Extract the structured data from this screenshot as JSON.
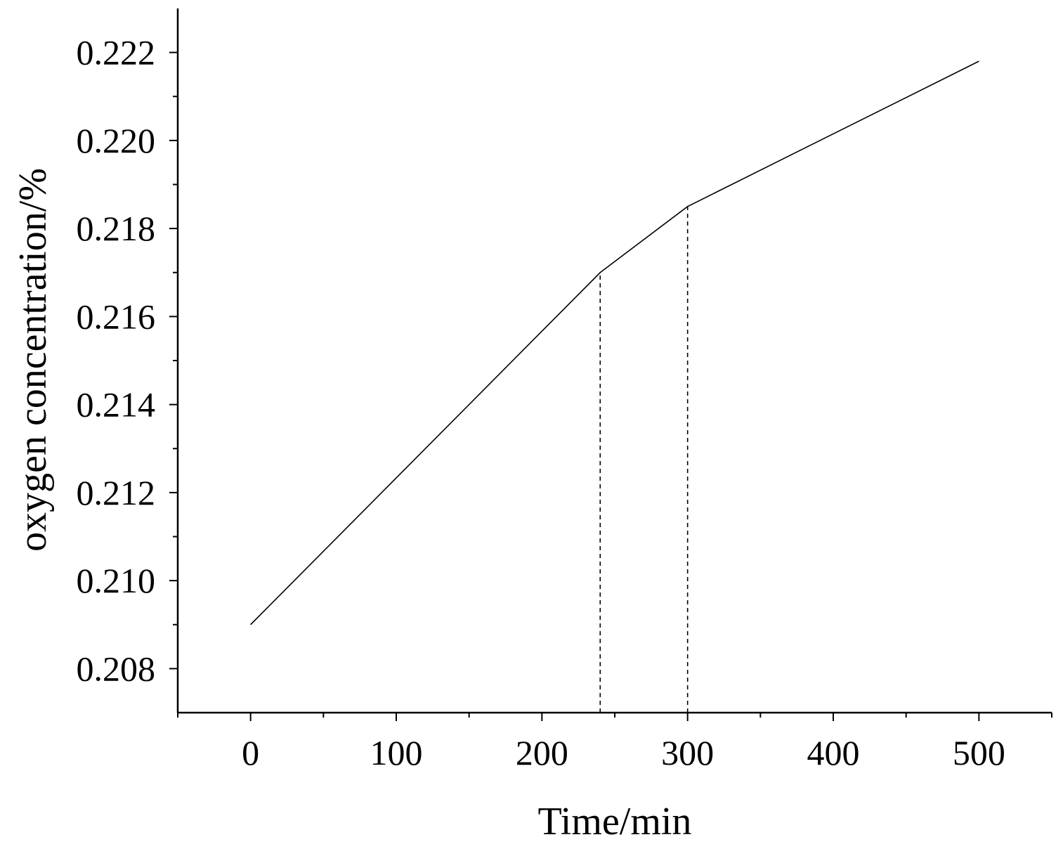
{
  "chart_data": {
    "type": "line",
    "title": "",
    "xlabel": "Time/min",
    "ylabel": "oxygen concentration/%",
    "xlim": [
      -50,
      550
    ],
    "ylim": [
      0.207,
      0.223
    ],
    "x_ticks": [
      0,
      100,
      200,
      300,
      400,
      500
    ],
    "x_tick_labels": [
      "0",
      "100",
      "200",
      "300",
      "400",
      "500"
    ],
    "x_minor_ticks": [
      -50,
      50,
      150,
      250,
      350,
      450,
      550
    ],
    "y_ticks": [
      0.208,
      0.21,
      0.212,
      0.214,
      0.216,
      0.218,
      0.22,
      0.222
    ],
    "y_tick_labels": [
      "0.208",
      "0.210",
      "0.212",
      "0.214",
      "0.216",
      "0.218",
      "0.220",
      "0.222"
    ],
    "y_minor_ticks": [
      0.209,
      0.211,
      0.213,
      0.215,
      0.217,
      0.219,
      0.221
    ],
    "grid": false,
    "legend": "none",
    "series": [
      {
        "x": [
          0,
          240,
          300,
          500
        ],
        "y": [
          0.209,
          0.217,
          0.2185,
          0.2218
        ],
        "style": "solid"
      }
    ],
    "reference_lines": [
      {
        "x": 240,
        "y_from": 0.207,
        "y_to": 0.217,
        "style": "dashed"
      },
      {
        "x": 300,
        "y_from": 0.207,
        "y_to": 0.2185,
        "style": "dashed"
      }
    ]
  }
}
